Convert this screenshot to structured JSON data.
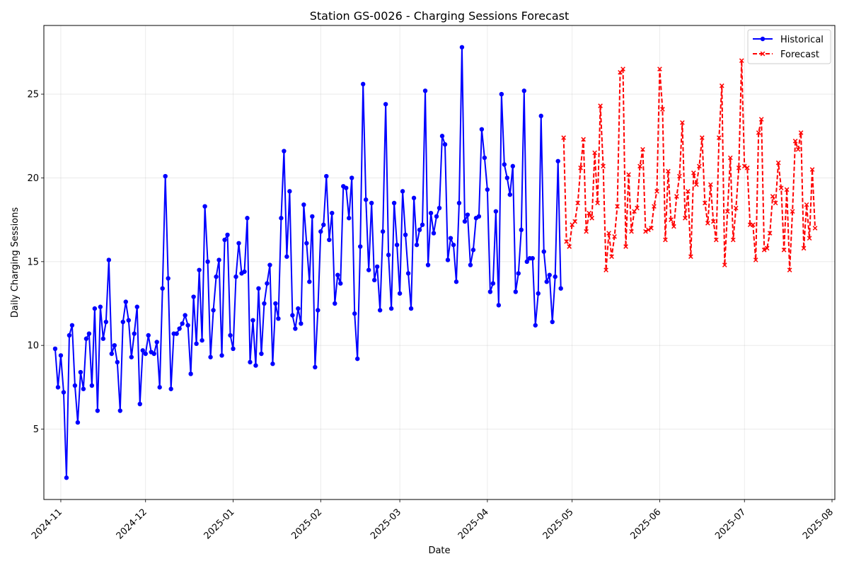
{
  "chart_data": {
    "type": "line",
    "title": "Station GS-0026 - Charging Sessions Forecast",
    "xlabel": "Date",
    "ylabel": "Daily Charging Sessions",
    "xlim": [
      "2024-10-26",
      "2025-08-02"
    ],
    "ylim": [
      0.8,
      29.1
    ],
    "grid": true,
    "legend_position": "top-right",
    "x_ticks": [
      "2024-11-01",
      "2024-12-01",
      "2025-01-01",
      "2025-02-01",
      "2025-03-01",
      "2025-04-01",
      "2025-05-01",
      "2025-06-01",
      "2025-07-01",
      "2025-08-01"
    ],
    "x_tick_labels": [
      "2024-11",
      "2024-12",
      "2025-01",
      "2025-02",
      "2025-03",
      "2025-04",
      "2025-05",
      "2025-06",
      "2025-07",
      "2025-08"
    ],
    "y_ticks": [
      5,
      10,
      15,
      20,
      25
    ],
    "y_tick_labels": [
      "5",
      "10",
      "15",
      "20",
      "25"
    ],
    "series": [
      {
        "name": "Historical",
        "color": "#0000ff",
        "line_style": "solid",
        "marker": "circle",
        "start_date": "2024-10-30",
        "step_days": 1,
        "values": [
          9.8,
          7.5,
          9.4,
          7.2,
          2.1,
          10.6,
          11.2,
          7.6,
          5.4,
          8.4,
          7.4,
          10.4,
          10.7,
          7.6,
          12.2,
          6.1,
          12.3,
          10.4,
          11.4,
          15.1,
          9.5,
          10.0,
          9.0,
          6.1,
          11.4,
          12.6,
          11.5,
          9.3,
          10.7,
          12.3,
          6.5,
          9.7,
          9.5,
          10.6,
          9.6,
          9.5,
          10.2,
          7.5,
          13.4,
          20.1,
          14.0,
          7.4,
          10.7,
          10.7,
          11.0,
          11.3,
          11.8,
          11.2,
          8.3,
          12.9,
          10.1,
          14.5,
          10.3,
          18.3,
          15.0,
          9.3,
          12.1,
          14.1,
          15.1,
          9.4,
          16.3,
          16.6,
          10.6,
          9.8,
          14.1,
          16.1,
          14.3,
          14.4,
          17.6,
          9.0,
          11.5,
          8.8,
          13.4,
          9.5,
          12.5,
          13.7,
          14.8,
          8.9,
          12.5,
          11.6,
          17.6,
          21.6,
          15.3,
          19.2,
          11.8,
          11.0,
          12.2,
          11.3,
          18.4,
          16.1,
          13.8,
          17.7,
          8.7,
          12.1,
          16.8,
          17.2,
          20.1,
          16.3,
          17.9,
          12.5,
          14.2,
          13.7,
          19.5,
          19.4,
          17.6,
          20.0,
          11.9,
          9.2,
          15.9,
          25.6,
          18.7,
          14.5,
          18.5,
          13.9,
          14.7,
          12.1,
          16.8,
          24.4,
          15.4,
          12.2,
          18.5,
          16.0,
          13.1,
          19.2,
          16.6,
          14.3,
          12.2,
          18.8,
          16.0,
          16.9,
          17.2,
          25.2,
          14.8,
          17.9,
          16.7,
          17.7,
          18.2,
          22.5,
          22.0,
          15.1,
          16.4,
          16.0,
          13.8,
          18.5,
          27.8,
          17.4,
          17.8,
          14.8,
          15.7,
          17.6,
          17.7,
          22.9,
          21.2,
          19.3,
          13.2,
          13.7,
          18.0,
          12.4,
          25.0,
          20.8,
          20.0,
          19.0,
          20.7,
          13.2,
          14.3,
          16.9,
          25.2,
          15.0,
          15.2,
          15.2,
          11.2,
          13.1,
          23.7,
          15.6,
          13.8,
          14.2,
          11.4,
          14.1,
          21.0,
          13.4
        ]
      },
      {
        "name": "Forecast",
        "color": "#ff0000",
        "line_style": "dashed",
        "marker": "x",
        "start_date": "2025-04-28",
        "step_days": 1,
        "values": [
          22.4,
          16.2,
          15.9,
          17.2,
          17.4,
          18.5,
          20.6,
          22.3,
          16.8,
          17.9,
          17.6,
          21.5,
          18.5,
          24.3,
          20.7,
          14.5,
          16.7,
          15.3,
          16.5,
          18.3,
          26.3,
          26.5,
          15.9,
          20.2,
          16.8,
          18.0,
          18.2,
          20.7,
          21.7,
          16.8,
          16.9,
          17.0,
          18.3,
          19.2,
          26.5,
          24.1,
          16.3,
          20.4,
          17.5,
          17.1,
          18.9,
          20.1,
          23.3,
          17.6,
          19.2,
          15.3,
          20.3,
          19.6,
          20.7,
          22.4,
          18.5,
          17.3,
          19.6,
          17.4,
          16.3,
          22.4,
          25.5,
          14.8,
          18.0,
          21.2,
          16.3,
          18.2,
          20.6,
          27.0,
          20.7,
          20.6,
          17.2,
          17.2,
          15.1,
          22.7,
          23.5,
          15.7,
          15.8,
          16.7,
          18.9,
          18.5,
          20.9,
          19.4,
          15.7,
          19.3,
          14.5,
          18.0,
          22.2,
          21.7,
          22.7,
          15.8,
          18.4,
          16.4,
          20.5,
          17.0
        ]
      }
    ]
  }
}
